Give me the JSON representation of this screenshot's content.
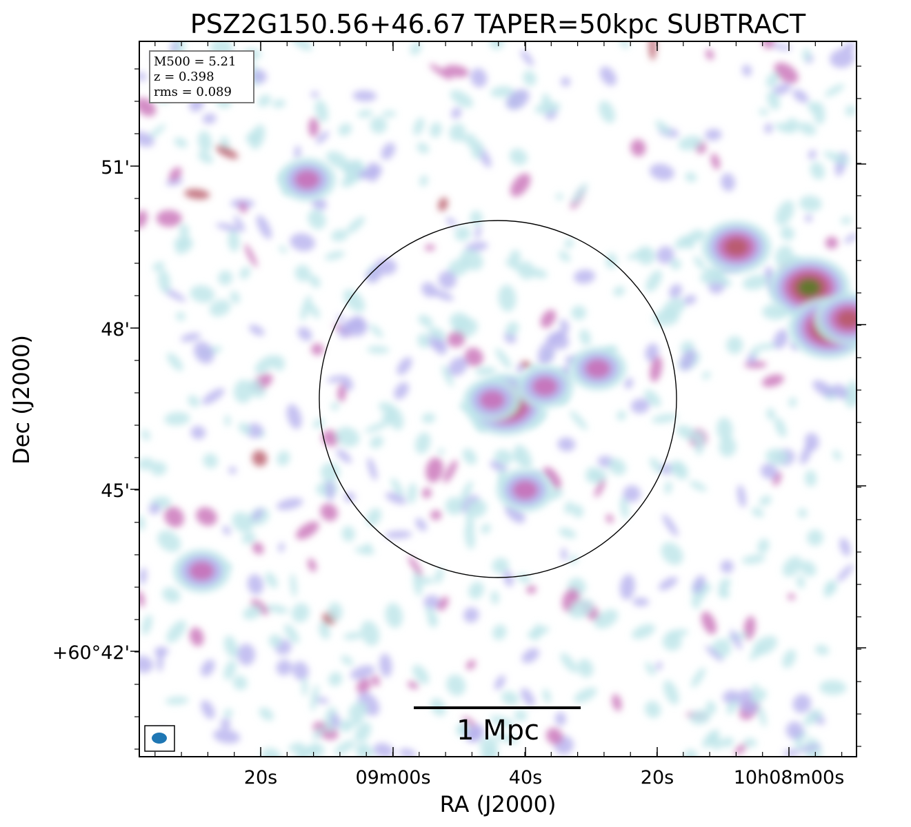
{
  "chart_data": {
    "type": "heatmap",
    "title": "PSZ2G150.56+46.67 TAPER=50kpc SUBTRACT",
    "xlabel": "RA (J2000)",
    "ylabel": "Dec (J2000)",
    "x_ticks": [
      "20s",
      "09m00s",
      "40s",
      "20s",
      "10h08m00s"
    ],
    "y_ticks": [
      "51'",
      "48'",
      "45'",
      "+60°42'"
    ],
    "info_box": {
      "m500": "M500 = 5.21",
      "z": "z = 0.398",
      "rms": "rms = 0.089"
    },
    "scale_bar_label": "1 Mpc",
    "colormap": [
      "#bfe6ea",
      "#b7b2ee",
      "#c870b8",
      "#b85868",
      "#5a7a28"
    ],
    "emission_blobs": [
      {
        "ra": "10h08m43s",
        "dec": "+60°46'35\"",
        "peak": 5
      },
      {
        "ra": "10h08m45s",
        "dec": "+60°46'40\"",
        "peak": 3
      },
      {
        "ra": "10h08m37s",
        "dec": "+60°46'55\"",
        "peak": 3
      },
      {
        "ra": "10h08m29s",
        "dec": "+60°47'15\"",
        "peak": 3
      },
      {
        "ra": "10h07m57s",
        "dec": "+60°48'45\"",
        "peak": 5
      },
      {
        "ra": "10h07m54s",
        "dec": "+60°48'00\"",
        "peak": 5
      },
      {
        "ra": "10h07m51s",
        "dec": "+60°48'10\"",
        "peak": 4
      },
      {
        "ra": "10h08m08s",
        "dec": "+60°49'30\"",
        "peak": 4
      },
      {
        "ra": "10h09m13s",
        "dec": "+60°50'45\"",
        "peak": 3
      },
      {
        "ra": "10h09m29s",
        "dec": "+60°43'30\"",
        "peak": 3
      },
      {
        "ra": "10h08m40s",
        "dec": "+60°45'00\"",
        "peak": 3
      }
    ]
  }
}
